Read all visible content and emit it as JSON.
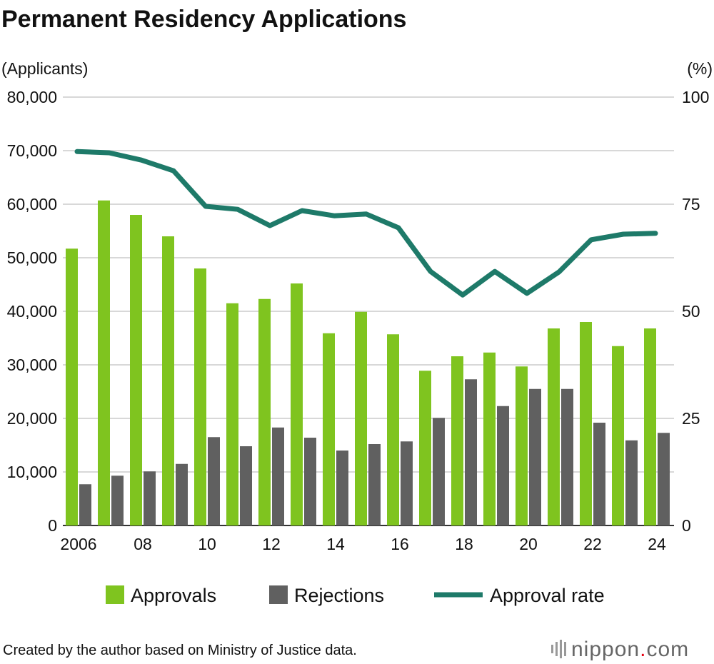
{
  "chart_data": {
    "type": "bar",
    "title": "Permanent Residency Applications",
    "ylabel_left": "(Applicants)",
    "ylabel_right": "(%)",
    "ylim_left": [
      0,
      80000
    ],
    "ylim_right": [
      0,
      100
    ],
    "yticks_left": [
      "0",
      "10,000",
      "20,000",
      "30,000",
      "40,000",
      "50,000",
      "60,000",
      "70,000",
      "80,000"
    ],
    "yticks_right": [
      "0",
      "25",
      "50",
      "75",
      "100"
    ],
    "grid": true,
    "legend_placement": "bottom",
    "x": [
      2006,
      2007,
      2008,
      2009,
      2010,
      2011,
      2012,
      2013,
      2014,
      2015,
      2016,
      2017,
      2018,
      2019,
      2020,
      2021,
      2022,
      2023,
      2024
    ],
    "xtick_labels": {
      "2006": "2006",
      "2008": "08",
      "2010": "10",
      "2012": "12",
      "2014": "14",
      "2016": "16",
      "2018": "18",
      "2020": "20",
      "2022": "22",
      "2024": "24"
    },
    "series": [
      {
        "name": "Approvals",
        "type": "bar",
        "axis": "left",
        "color": "#7fc41f",
        "values": [
          51700,
          60700,
          58000,
          54000,
          48000,
          41500,
          42300,
          45200,
          35900,
          39900,
          35700,
          28900,
          31600,
          32300,
          29700,
          36800,
          38000,
          33500,
          36800
        ]
      },
      {
        "name": "Rejections",
        "type": "bar",
        "axis": "left",
        "color": "#606060",
        "values": [
          7700,
          9300,
          10100,
          11500,
          16500,
          14800,
          18300,
          16400,
          14000,
          15200,
          15700,
          20100,
          27300,
          22300,
          25500,
          25500,
          19200,
          15900,
          17300
        ]
      },
      {
        "name": "Approval rate",
        "type": "line",
        "axis": "right",
        "color": "#1e7a69",
        "values": [
          87.3,
          87.0,
          85.3,
          82.8,
          74.5,
          73.8,
          70.0,
          73.5,
          72.3,
          72.7,
          69.5,
          59.3,
          53.8,
          59.3,
          54.2,
          59.2,
          66.7,
          68.0,
          68.2
        ]
      }
    ]
  },
  "footer": {
    "source": "Created by the author based on Ministry of Justice data."
  },
  "logo": {
    "text_main": "nippon",
    "text_dot": ".",
    "text_tld": "com",
    "dot_color": "#e60012"
  }
}
